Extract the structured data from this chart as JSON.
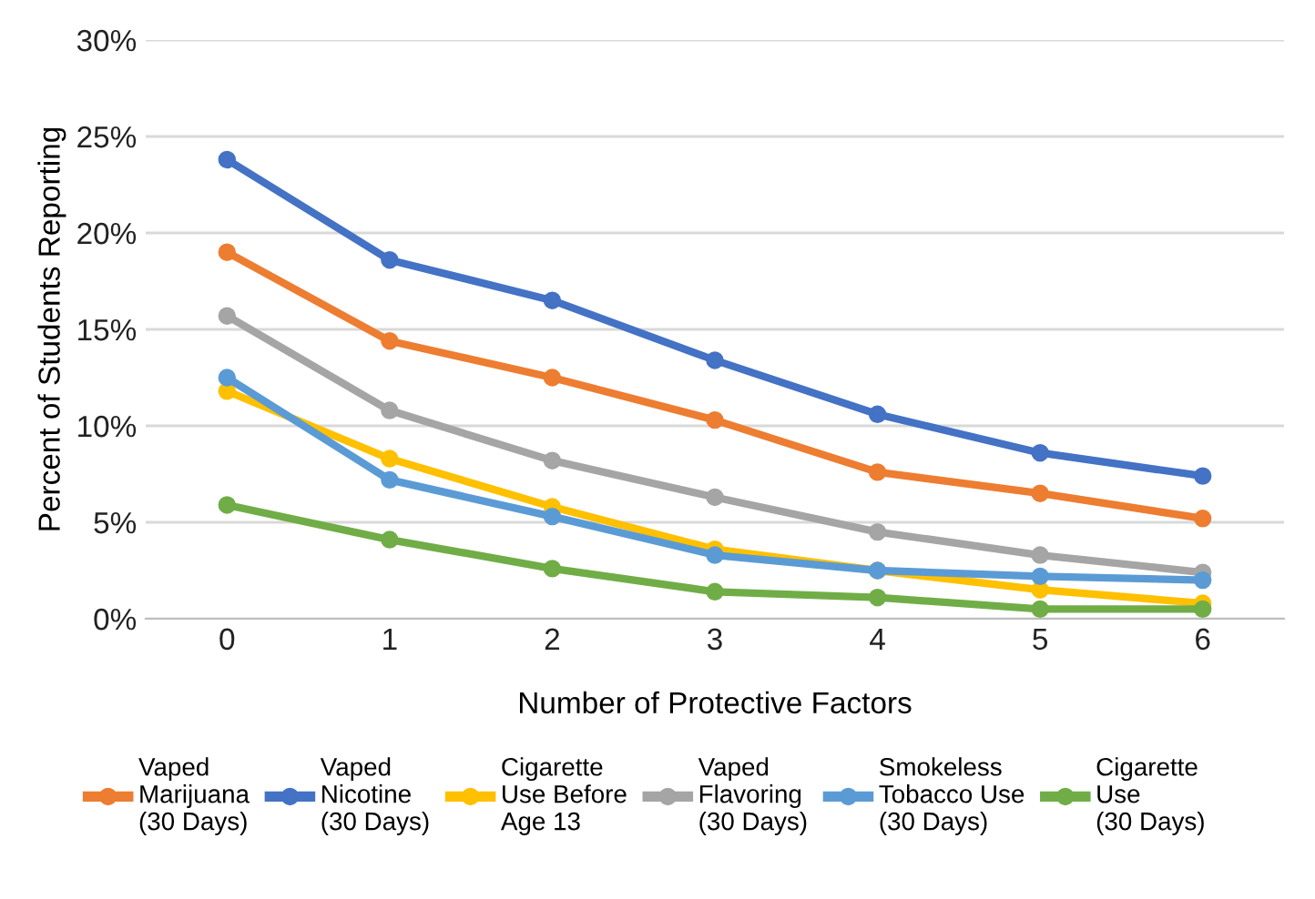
{
  "chart_data": {
    "type": "line",
    "xlabel": "Number of Protective Factors",
    "ylabel": "Percent of Students Reporting",
    "categories": [
      "0",
      "1",
      "2",
      "3",
      "4",
      "5",
      "6"
    ],
    "ylim": [
      0,
      30
    ],
    "yticks": [
      {
        "value": 0,
        "label": "0%"
      },
      {
        "value": 5,
        "label": "5%"
      },
      {
        "value": 10,
        "label": "10%"
      },
      {
        "value": 15,
        "label": "15%"
      },
      {
        "value": 20,
        "label": "20%"
      },
      {
        "value": 25,
        "label": "25%"
      },
      {
        "value": 30,
        "label": "30%"
      }
    ],
    "grid": "y",
    "legend": "bottom",
    "marker": "circle",
    "line_style": "solid",
    "series": [
      {
        "name": "Vaped\nMarijuana\n(30 Days)",
        "color": "#ed7d31",
        "values": [
          19.0,
          14.4,
          12.5,
          10.3,
          7.6,
          6.5,
          5.2
        ]
      },
      {
        "name": "Vaped\nNicotine\n(30 Days)",
        "color": "#4472c4",
        "values": [
          23.8,
          18.6,
          16.5,
          13.4,
          10.6,
          8.6,
          7.4
        ]
      },
      {
        "name": "Cigarette\nUse Before\nAge 13",
        "color": "#ffc000",
        "values": [
          11.8,
          8.3,
          5.8,
          3.6,
          2.5,
          1.5,
          0.8
        ]
      },
      {
        "name": "Vaped\nFlavoring\n(30 Days)",
        "color": "#a5a5a5",
        "values": [
          15.7,
          10.8,
          8.2,
          6.3,
          4.5,
          3.3,
          2.4
        ]
      },
      {
        "name": "Smokeless\nTobacco Use\n(30 Days)",
        "color": "#5b9bd5",
        "values": [
          12.5,
          7.2,
          5.3,
          3.3,
          2.5,
          2.2,
          2.0
        ]
      },
      {
        "name": "Cigarette\nUse\n(30 Days)",
        "color": "#70ad47",
        "values": [
          5.9,
          4.1,
          2.6,
          1.4,
          1.1,
          0.5,
          0.5
        ]
      }
    ]
  }
}
